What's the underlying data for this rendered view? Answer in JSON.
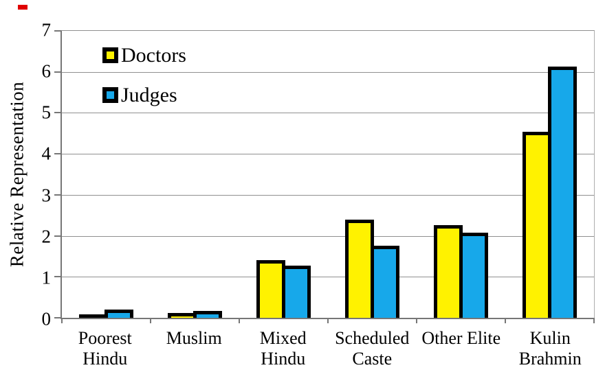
{
  "chart_data": {
    "type": "bar",
    "title": "",
    "xlabel": "",
    "ylabel": "Relative Representation",
    "ylim": [
      0,
      7
    ],
    "yticks": [
      0,
      1,
      2,
      3,
      4,
      5,
      6,
      7
    ],
    "grid": true,
    "legend_position": "top-left-inside",
    "categories": [
      [
        "Poorest",
        "Hindu"
      ],
      [
        "Muslim"
      ],
      [
        "Mixed",
        "Hindu"
      ],
      [
        "Scheduled",
        "Caste"
      ],
      [
        "Other Elite"
      ],
      [
        "Kulin",
        "Brahmin"
      ]
    ],
    "series": [
      {
        "name": "Doctors",
        "color": "#fff200",
        "values": [
          0.09,
          0.12,
          1.4,
          2.38,
          2.24,
          4.5
        ]
      },
      {
        "name": "Judges",
        "color": "#17a8ea",
        "values": [
          0.2,
          0.16,
          1.27,
          1.74,
          2.07,
          6.08
        ]
      }
    ],
    "colors": {
      "bar_outline": "#000000",
      "gridline": "#8f8f8f",
      "axis": "#767676",
      "corner_mark": "#e00000",
      "background": "#ffffff",
      "text": "#000000"
    }
  }
}
